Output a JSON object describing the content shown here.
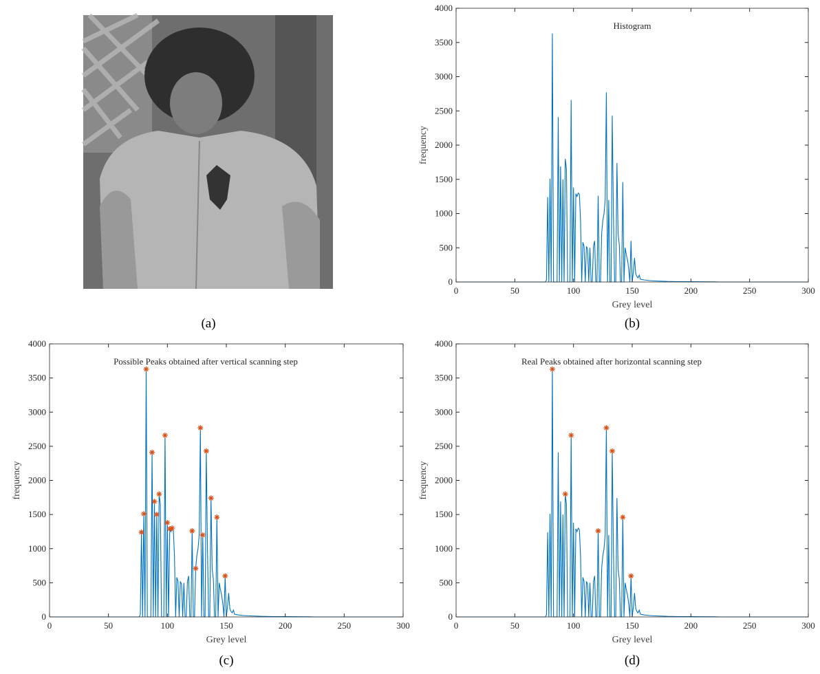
{
  "image_caption": "(a)",
  "chart_data": [
    {
      "type": "line",
      "title": "Histogram",
      "caption": "(b)",
      "xlabel": "Grey level",
      "ylabel": "frequency",
      "x": [
        0,
        76,
        77,
        78,
        79,
        80,
        81,
        82,
        83,
        84,
        86,
        87,
        88,
        89,
        90,
        91,
        92,
        93,
        94,
        95,
        97,
        98,
        99,
        100,
        101,
        102,
        103,
        104,
        105,
        106,
        107,
        108,
        109,
        110,
        111,
        112,
        113,
        114,
        115,
        116,
        117,
        118,
        119,
        120,
        121,
        122,
        123,
        124,
        125,
        126,
        127,
        128,
        129,
        130,
        131,
        132,
        133,
        134,
        135,
        136,
        137,
        138,
        139,
        140,
        141,
        142,
        143,
        144,
        145,
        146,
        147,
        148,
        149,
        150,
        151,
        152,
        153,
        154,
        155,
        156,
        157,
        160,
        165,
        170,
        180,
        190,
        200,
        210,
        220,
        225,
        300
      ],
      "series": [
        {
          "color": "#0072bd",
          "values": [
            0,
            0,
            30,
            1240,
            0,
            1510,
            0,
            3630,
            0,
            0,
            0,
            2410,
            0,
            1690,
            0,
            1500,
            0,
            1800,
            1650,
            0,
            0,
            2660,
            0,
            1380,
            0,
            1290,
            1250,
            1300,
            1280,
            900,
            0,
            580,
            520,
            0,
            520,
            480,
            0,
            500,
            0,
            0,
            520,
            600,
            0,
            0,
            1260,
            0,
            0,
            710,
            900,
            1000,
            1200,
            2770,
            0,
            1200,
            0,
            0,
            2430,
            1000,
            0,
            0,
            1740,
            700,
            550,
            0,
            0,
            1460,
            0,
            500,
            400,
            320,
            200,
            0,
            600,
            0,
            150,
            350,
            120,
            80,
            60,
            100,
            40,
            30,
            20,
            15,
            8,
            5,
            4,
            3,
            2,
            0,
            0
          ]
        }
      ],
      "xlim": [
        0,
        300
      ],
      "ylim": [
        0,
        4000
      ],
      "xticks": [
        0,
        50,
        100,
        150,
        200,
        250,
        300
      ],
      "yticks": [
        0,
        500,
        1000,
        1500,
        2000,
        2500,
        3000,
        3500,
        4000
      ]
    },
    {
      "type": "line",
      "title": "Possible Peaks obtained after vertical scanning step",
      "caption": "(c)",
      "xlabel": "Grey level",
      "ylabel": "frequency",
      "x": [
        0,
        76,
        77,
        78,
        79,
        80,
        81,
        82,
        83,
        84,
        86,
        87,
        88,
        89,
        90,
        91,
        92,
        93,
        94,
        95,
        97,
        98,
        99,
        100,
        101,
        102,
        103,
        104,
        105,
        106,
        107,
        108,
        109,
        110,
        111,
        112,
        113,
        114,
        115,
        116,
        117,
        118,
        119,
        120,
        121,
        122,
        123,
        124,
        125,
        126,
        127,
        128,
        129,
        130,
        131,
        132,
        133,
        134,
        135,
        136,
        137,
        138,
        139,
        140,
        141,
        142,
        143,
        144,
        145,
        146,
        147,
        148,
        149,
        150,
        151,
        152,
        153,
        154,
        155,
        156,
        157,
        160,
        165,
        170,
        180,
        190,
        200,
        210,
        220,
        225,
        300
      ],
      "series": [
        {
          "color": "#0072bd",
          "values": [
            0,
            0,
            30,
            1240,
            0,
            1510,
            0,
            3630,
            0,
            0,
            0,
            2410,
            0,
            1690,
            0,
            1500,
            0,
            1800,
            1650,
            0,
            0,
            2660,
            0,
            1380,
            0,
            1290,
            1250,
            1300,
            1280,
            900,
            0,
            580,
            520,
            0,
            520,
            480,
            0,
            500,
            0,
            0,
            520,
            600,
            0,
            0,
            1260,
            0,
            0,
            710,
            900,
            1000,
            1200,
            2770,
            0,
            1200,
            0,
            0,
            2430,
            1000,
            0,
            0,
            1740,
            700,
            550,
            0,
            0,
            1460,
            0,
            500,
            400,
            320,
            200,
            0,
            600,
            0,
            150,
            350,
            120,
            80,
            60,
            100,
            40,
            30,
            20,
            15,
            8,
            5,
            4,
            3,
            2,
            0,
            0
          ]
        }
      ],
      "markers": {
        "color": "#d95319",
        "x": [
          78,
          80,
          82,
          87,
          89,
          91,
          93,
          98,
          100,
          102,
          104,
          121,
          124,
          128,
          130,
          133,
          137,
          142,
          149
        ],
        "values": [
          1240,
          1510,
          3630,
          2410,
          1690,
          1500,
          1800,
          2660,
          1380,
          1290,
          1300,
          1260,
          710,
          2770,
          1200,
          2430,
          1740,
          1460,
          600
        ]
      },
      "xlim": [
        0,
        300
      ],
      "ylim": [
        0,
        4000
      ],
      "xticks": [
        0,
        50,
        100,
        150,
        200,
        250,
        300
      ],
      "yticks": [
        0,
        500,
        1000,
        1500,
        2000,
        2500,
        3000,
        3500,
        4000
      ]
    },
    {
      "type": "line",
      "title": "Real Peaks obtained after horizontal scanning step",
      "caption": "(d)",
      "xlabel": "Grey level",
      "ylabel": "frequency",
      "x": [
        0,
        76,
        77,
        78,
        79,
        80,
        81,
        82,
        83,
        84,
        86,
        87,
        88,
        89,
        90,
        91,
        92,
        93,
        94,
        95,
        97,
        98,
        99,
        100,
        101,
        102,
        103,
        104,
        105,
        106,
        107,
        108,
        109,
        110,
        111,
        112,
        113,
        114,
        115,
        116,
        117,
        118,
        119,
        120,
        121,
        122,
        123,
        124,
        125,
        126,
        127,
        128,
        129,
        130,
        131,
        132,
        133,
        134,
        135,
        136,
        137,
        138,
        139,
        140,
        141,
        142,
        143,
        144,
        145,
        146,
        147,
        148,
        149,
        150,
        151,
        152,
        153,
        154,
        155,
        156,
        157,
        160,
        165,
        170,
        180,
        190,
        200,
        210,
        220,
        225,
        300
      ],
      "series": [
        {
          "color": "#0072bd",
          "values": [
            0,
            0,
            30,
            1240,
            0,
            1510,
            0,
            3630,
            0,
            0,
            0,
            2410,
            0,
            1690,
            0,
            1500,
            0,
            1800,
            1650,
            0,
            0,
            2660,
            0,
            1380,
            0,
            1290,
            1250,
            1300,
            1280,
            900,
            0,
            580,
            520,
            0,
            520,
            480,
            0,
            500,
            0,
            0,
            520,
            600,
            0,
            0,
            1260,
            0,
            0,
            710,
            900,
            1000,
            1200,
            2770,
            0,
            1200,
            0,
            0,
            2430,
            1000,
            0,
            0,
            1740,
            700,
            550,
            0,
            0,
            1460,
            0,
            500,
            400,
            320,
            200,
            0,
            600,
            0,
            150,
            350,
            120,
            80,
            60,
            100,
            40,
            30,
            20,
            15,
            8,
            5,
            4,
            3,
            2,
            0,
            0
          ]
        }
      ],
      "markers": {
        "color": "#d95319",
        "x": [
          82,
          93,
          98,
          121,
          128,
          133,
          142,
          149
        ],
        "values": [
          3630,
          1800,
          2660,
          1260,
          2770,
          2430,
          1460,
          600
        ]
      },
      "xlim": [
        0,
        300
      ],
      "ylim": [
        0,
        4000
      ],
      "xticks": [
        0,
        50,
        100,
        150,
        200,
        250,
        300
      ],
      "yticks": [
        0,
        500,
        1000,
        1500,
        2000,
        2500,
        3000,
        3500,
        4000
      ]
    }
  ]
}
